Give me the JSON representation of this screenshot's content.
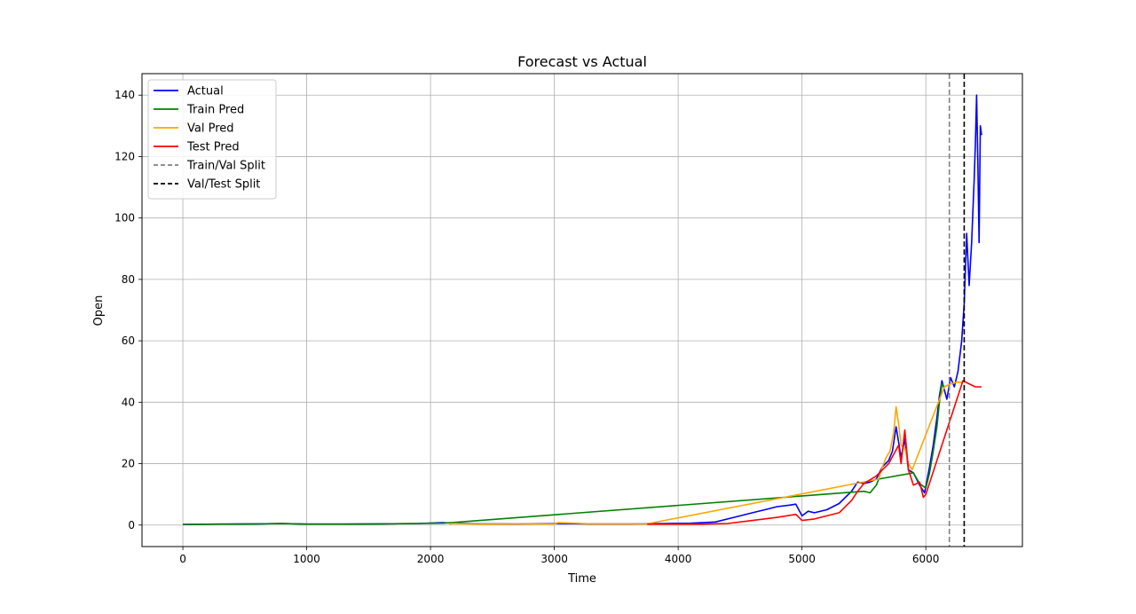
{
  "chart_data": {
    "type": "line",
    "title": "Forecast vs Actual",
    "xlabel": "Time",
    "ylabel": "Open",
    "xlim": [
      -330,
      6780
    ],
    "ylim": [
      -7,
      147
    ],
    "xticks": [
      0,
      1000,
      2000,
      3000,
      4000,
      5000,
      6000
    ],
    "yticks": [
      0,
      20,
      40,
      60,
      80,
      100,
      120,
      140
    ],
    "grid": true,
    "legend": "upper left",
    "series": [
      {
        "name": "Actual",
        "color": "#0000ff",
        "style": "solid",
        "x": [
          0,
          300,
          600,
          800,
          1000,
          1300,
          1600,
          1900,
          2100,
          2200,
          2400,
          2700,
          3000,
          3300,
          3600,
          3900,
          4100,
          4300,
          4450,
          4500,
          4600,
          4700,
          4800,
          4900,
          4950,
          5000,
          5050,
          5100,
          5200,
          5300,
          5350,
          5400,
          5450,
          5500,
          5550,
          5600,
          5650,
          5700,
          5730,
          5760,
          5780,
          5800,
          5830,
          5860,
          5900,
          5950,
          5990,
          6030,
          6060,
          6090,
          6110,
          6130,
          6150,
          6170,
          6200,
          6230,
          6260,
          6290,
          6310,
          6330,
          6350,
          6370,
          6390,
          6400,
          6410,
          6420,
          6430,
          6440,
          6450
        ],
        "y": [
          0.2,
          0.3,
          0.4,
          0.5,
          0.3,
          0.3,
          0.4,
          0.5,
          0.8,
          0.6,
          0.4,
          0.4,
          0.5,
          0.4,
          0.4,
          0.5,
          0.6,
          1.0,
          2.5,
          3.0,
          4.0,
          5.0,
          6.0,
          6.5,
          6.8,
          3.0,
          4.5,
          4.0,
          5.0,
          7.0,
          9.0,
          11.0,
          14.0,
          13.5,
          14.0,
          15.0,
          19.0,
          21.0,
          24.0,
          32.0,
          27.0,
          22.0,
          28.0,
          18.0,
          17.0,
          13.0,
          10.5,
          19.0,
          26.0,
          35.0,
          42.0,
          47.0,
          44.0,
          41.0,
          48.0,
          45.0,
          50.0,
          60.0,
          72.0,
          95.0,
          78.0,
          92.0,
          112.0,
          124.0,
          140.0,
          118.0,
          92.0,
          130.0,
          127.0
        ]
      },
      {
        "name": "Train Pred",
        "color": "#008000",
        "style": "solid",
        "x": [
          0,
          300,
          600,
          800,
          1000,
          1300,
          1600,
          1900,
          2100,
          5500,
          5550,
          5600,
          5620,
          5900,
          5950,
          6000,
          6030,
          6060,
          6090,
          6110,
          6130,
          6150
        ],
        "y": [
          0.2,
          0.3,
          0.4,
          0.5,
          0.3,
          0.3,
          0.4,
          0.5,
          0.6,
          11.0,
          10.5,
          13.0,
          15.0,
          17.0,
          13.5,
          12.0,
          17.0,
          24.0,
          32.0,
          40.0,
          46.0,
          45.0
        ]
      },
      {
        "name": "Val Pred",
        "color": "#ffa500",
        "style": "solid",
        "x": [
          2150,
          2200,
          2400,
          2700,
          3000,
          3030,
          3300,
          3600,
          3750,
          5620,
          5650,
          5680,
          5710,
          5740,
          5760,
          5780,
          5800,
          5830,
          5860,
          5890,
          6150,
          6200,
          6250,
          6300
        ],
        "y": [
          0.4,
          0.5,
          0.3,
          0.4,
          0.4,
          0.8,
          0.4,
          0.4,
          0.4,
          15.0,
          19.0,
          22.0,
          24.0,
          30.0,
          38.5,
          33.0,
          26.0,
          25.0,
          20.0,
          18.0,
          45.0,
          46.0,
          46.5,
          46.5
        ]
      },
      {
        "name": "Test Pred",
        "color": "#ff0000",
        "style": "solid",
        "x": [
          3750,
          4000,
          4200,
          4400,
          4600,
          4800,
          4950,
          5000,
          5100,
          5300,
          5400,
          5450,
          5500,
          5600,
          5700,
          5780,
          5800,
          5830,
          5860,
          5900,
          5950,
          5980,
          6000,
          6300,
          6350,
          6400,
          6450
        ],
        "y": [
          0.3,
          0.3,
          0.3,
          0.5,
          1.5,
          2.5,
          3.5,
          1.5,
          2.0,
          4.0,
          8.0,
          11.0,
          13.5,
          16.0,
          20.0,
          26.0,
          20.0,
          31.0,
          18.0,
          13.0,
          14.0,
          9.0,
          10.0,
          47.0,
          46.0,
          45.0,
          45.0
        ]
      }
    ],
    "vlines": [
      {
        "name": "Train/Val Split",
        "x": 6190,
        "color": "#808080",
        "style": "dashed"
      },
      {
        "name": "Val/Test Split",
        "x": 6310,
        "color": "#000000",
        "style": "dashed"
      }
    ]
  }
}
